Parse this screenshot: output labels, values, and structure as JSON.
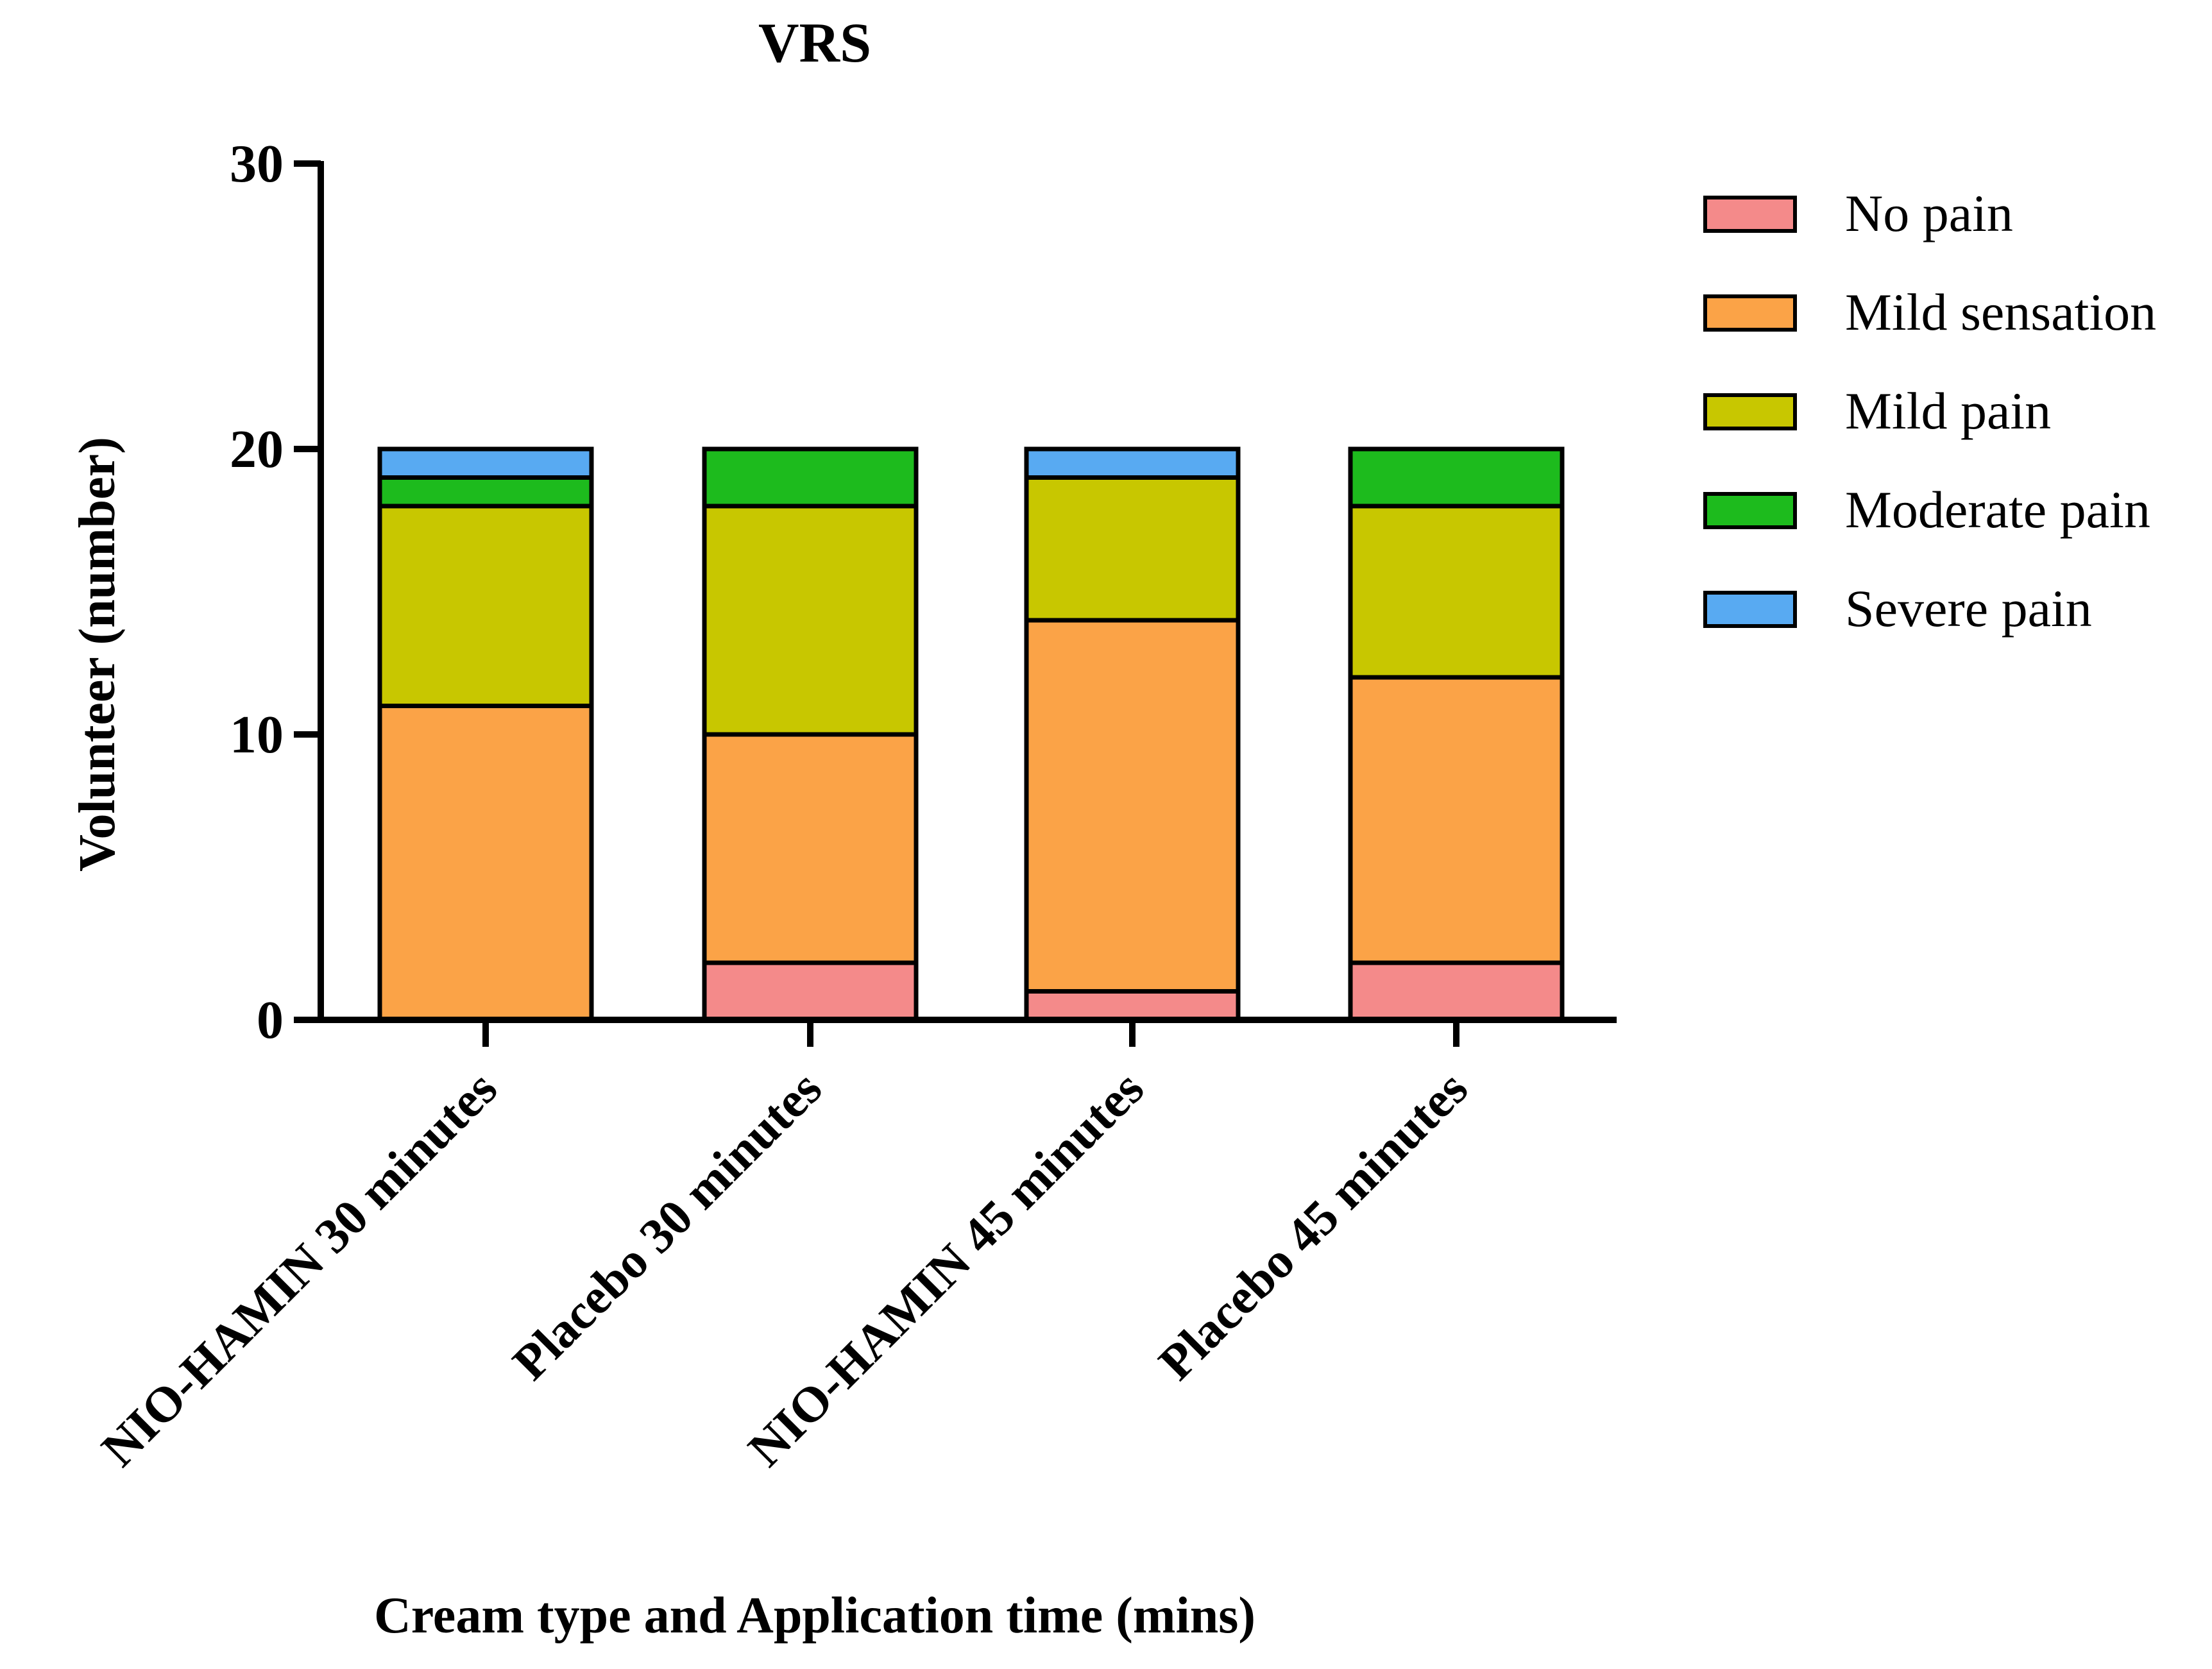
{
  "chart_data": {
    "type": "bar",
    "stacked": true,
    "title": "VRS",
    "xlabel": "Cream type and Application time (mins)",
    "ylabel": "Volunteer (number)",
    "ylim": [
      0,
      30
    ],
    "yticks": [
      0,
      10,
      20,
      30
    ],
    "categories": [
      "NIO-HAMIN 30 minutes",
      "Placebo 30 minutes",
      "NIO-HAMIN 45 minutes",
      "Placebo 45 minutes"
    ],
    "series": [
      {
        "name": "No pain",
        "color": "#f48a8a",
        "values": [
          0,
          2,
          1,
          2
        ]
      },
      {
        "name": "Mild sensation",
        "color": "#fba347",
        "values": [
          11,
          8,
          13,
          10
        ]
      },
      {
        "name": "Mild pain",
        "color": "#c8c700",
        "values": [
          7,
          8,
          5,
          6
        ]
      },
      {
        "name": "Moderate pain",
        "color": "#1dbb1d",
        "values": [
          1,
          2,
          0,
          2
        ]
      },
      {
        "name": "Severe pain",
        "color": "#58aaf2",
        "values": [
          1,
          0,
          1,
          0
        ]
      }
    ],
    "legend_position": "top-right"
  }
}
